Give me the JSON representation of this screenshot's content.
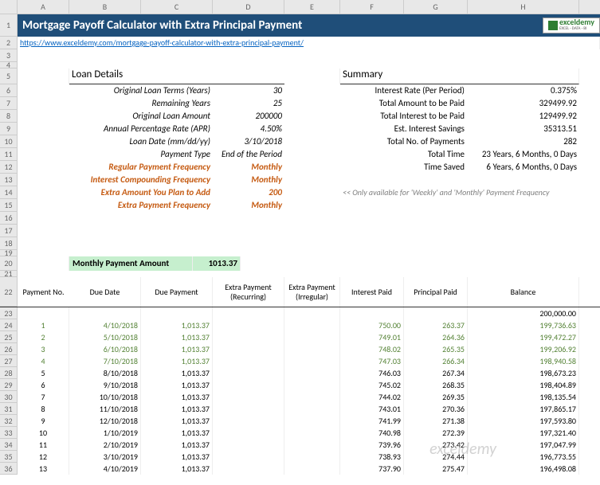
{
  "title": "Mortgage Payoff Calculator with Extra Principal Payment",
  "logo": {
    "text": "exceldemy",
    "sub": "EXCEL · DATA · BI"
  },
  "url": "https://www.exceldemy.com/mortgage-payoff-calculator-with-extra-principal-payment/",
  "columns": [
    "A",
    "B",
    "C",
    "D",
    "E",
    "F",
    "G",
    "H"
  ],
  "loanDetails": {
    "header": "Loan Details",
    "rows": [
      {
        "label": "Original Loan Terms (Years)",
        "value": "30"
      },
      {
        "label": "Remaining Years",
        "value": "25"
      },
      {
        "label": "Original Loan Amount",
        "value": "200000"
      },
      {
        "label": "Annual Percentage Rate (APR)",
        "value": "4.50%"
      },
      {
        "label": "Loan Date (mm/dd/yy)",
        "value": "3/10/2018"
      },
      {
        "label": "Payment Type",
        "value": "End of the Period"
      }
    ],
    "extras": [
      {
        "label": "Regular Payment Frequency",
        "value": "Monthly"
      },
      {
        "label": "Interest Compounding Frequency",
        "value": "Monthly"
      },
      {
        "label": "Extra Amount You Plan to Add",
        "value": "200"
      },
      {
        "label": "Extra Payment Frequency",
        "value": "Monthly"
      }
    ]
  },
  "summary": {
    "header": "Summary",
    "rows": [
      {
        "label": "Interest Rate (Per Period)",
        "value": "0.375%"
      },
      {
        "label": "Total Amount to be Paid",
        "value": "329499.92"
      },
      {
        "label": "Total Interest to be Paid",
        "value": "129499.92"
      },
      {
        "label": "Est. Interest Savings",
        "value": "35313.51"
      },
      {
        "label": "Total No. of Payments",
        "value": "282"
      },
      {
        "label": "Total Time",
        "value": "23 Years, 6 Months, 0 Days"
      },
      {
        "label": "Time Saved",
        "value": "6 Years, 6 Months, 0 Days"
      }
    ]
  },
  "note": "<< Only available for 'Weekly' and 'Monthly' Payment Frequency",
  "monthly": {
    "label": "Monthly Payment Amount",
    "value": "1013.37"
  },
  "tableHeaders": [
    "Payment No.",
    "Due Date",
    "Due Payment",
    "Extra Payment (Recurring)",
    "Extra Payment (Irregular)",
    "Interest Paid",
    "Principal Paid",
    "Balance"
  ],
  "startBalance": "200,000.00",
  "tableRows": [
    {
      "no": "1",
      "date": "4/10/2018",
      "due": "1,013.37",
      "int": "750.00",
      "prin": "263.37",
      "bal": "199,736.63",
      "g": true
    },
    {
      "no": "2",
      "date": "5/10/2018",
      "due": "1,013.37",
      "int": "749.01",
      "prin": "264.36",
      "bal": "199,472.27",
      "g": true
    },
    {
      "no": "3",
      "date": "6/10/2018",
      "due": "1,013.37",
      "int": "748.02",
      "prin": "265.35",
      "bal": "199,206.92",
      "g": true
    },
    {
      "no": "4",
      "date": "7/10/2018",
      "due": "1,013.37",
      "int": "747.03",
      "prin": "266.34",
      "bal": "198,940.58",
      "g": true
    },
    {
      "no": "5",
      "date": "8/10/2018",
      "due": "1,013.37",
      "int": "746.03",
      "prin": "267.34",
      "bal": "198,673.23",
      "g": false
    },
    {
      "no": "6",
      "date": "9/10/2018",
      "due": "1,013.37",
      "int": "745.02",
      "prin": "268.35",
      "bal": "198,404.89",
      "g": false
    },
    {
      "no": "7",
      "date": "10/10/2018",
      "due": "1,013.37",
      "int": "744.02",
      "prin": "269.35",
      "bal": "198,135.54",
      "g": false
    },
    {
      "no": "8",
      "date": "11/10/2018",
      "due": "1,013.37",
      "int": "743.01",
      "prin": "270.36",
      "bal": "197,865.17",
      "g": false
    },
    {
      "no": "9",
      "date": "12/10/2018",
      "due": "1,013.37",
      "int": "741.99",
      "prin": "271.38",
      "bal": "197,593.80",
      "g": false
    },
    {
      "no": "10",
      "date": "1/10/2019",
      "due": "1,013.37",
      "int": "740.98",
      "prin": "272.39",
      "bal": "197,321.40",
      "g": false
    },
    {
      "no": "11",
      "date": "2/10/2019",
      "due": "1,013.37",
      "int": "739.96",
      "prin": "273.42",
      "bal": "197,047.99",
      "g": false
    },
    {
      "no": "12",
      "date": "3/10/2019",
      "due": "1,013.37",
      "int": "738.93",
      "prin": "274.44",
      "bal": "196,773.55",
      "g": false
    },
    {
      "no": "13",
      "date": "4/10/2019",
      "due": "1,013.37",
      "int": "737.90",
      "prin": "275.47",
      "bal": "196,498.08",
      "g": false
    }
  ],
  "watermark": "exceldemy"
}
